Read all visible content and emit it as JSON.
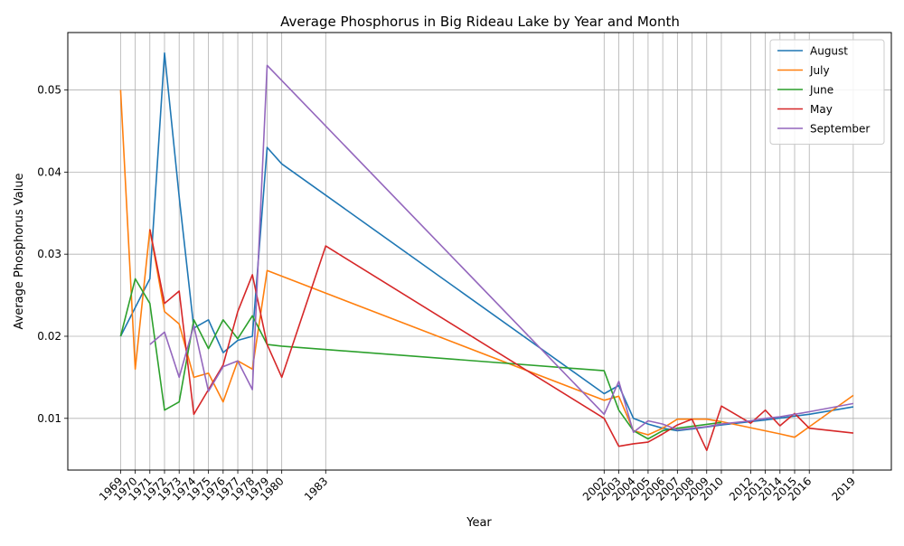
{
  "chart_data": {
    "type": "line",
    "title": "Average Phosphorus in Big Rideau Lake by Year and Month",
    "xlabel": "Year",
    "ylabel": "Average Phosphorus Value",
    "xlim": [
      1965.4,
      2021.6
    ],
    "ylim": [
      0.0037,
      0.057
    ],
    "yticks": [
      0.01,
      0.02,
      0.03,
      0.04,
      0.05
    ],
    "ytick_labels": [
      "0.01",
      "0.02",
      "0.03",
      "0.04",
      "0.05"
    ],
    "xticks": [
      1969,
      1970,
      1971,
      1972,
      1973,
      1974,
      1975,
      1976,
      1977,
      1978,
      1979,
      1980,
      1983,
      2002,
      2003,
      2004,
      2005,
      2006,
      2007,
      2008,
      2009,
      2010,
      2012,
      2013,
      2014,
      2015,
      2016,
      2019
    ],
    "grid": true,
    "legend_position": "upper-right",
    "series": [
      {
        "name": "August",
        "color": "#1f77b4",
        "x": [
          1969,
          1971,
          1972,
          1973,
          1974,
          1975,
          1976,
          1977,
          1978,
          1979,
          1980,
          2002,
          2003,
          2004,
          2005,
          2006,
          2007,
          2008,
          2010,
          2013,
          2016,
          2019
        ],
        "y": [
          0.02,
          0.027,
          0.0545,
          0.037,
          0.021,
          0.022,
          0.018,
          0.0195,
          0.02,
          0.043,
          0.041,
          0.013,
          0.014,
          0.01,
          0.0093,
          0.0088,
          0.0085,
          0.0087,
          0.0092,
          0.0098,
          0.0105,
          0.0114
        ]
      },
      {
        "name": "July",
        "color": "#ff7f0e",
        "x": [
          1969,
          1970,
          1971,
          1972,
          1973,
          1974,
          1975,
          1976,
          1977,
          1978,
          1979,
          2002,
          2003,
          2004,
          2005,
          2006,
          2007,
          2008,
          2009,
          2010,
          2014,
          2015,
          2019
        ],
        "y": [
          0.05,
          0.016,
          0.033,
          0.023,
          0.0215,
          0.015,
          0.0155,
          0.012,
          0.017,
          0.016,
          0.028,
          0.0122,
          0.0127,
          0.0085,
          0.008,
          0.0088,
          0.0099,
          0.0099,
          0.0099,
          0.0096,
          0.0081,
          0.0077,
          0.0128
        ]
      },
      {
        "name": "June",
        "color": "#2ca02c",
        "x": [
          1969,
          1970,
          1971,
          1972,
          1973,
          1974,
          1975,
          1976,
          1977,
          1978,
          1979,
          1980,
          2002,
          2003,
          2004,
          2005,
          2006,
          2007,
          2010
        ],
        "y": [
          0.02,
          0.027,
          0.024,
          0.011,
          0.012,
          0.022,
          0.0185,
          0.022,
          0.0197,
          0.0225,
          0.019,
          0.0188,
          0.0158,
          0.011,
          0.0085,
          0.0075,
          0.0085,
          0.0088,
          0.0095
        ]
      },
      {
        "name": "May",
        "color": "#d62728",
        "x": [
          1971,
          1972,
          1973,
          1974,
          1975,
          1976,
          1977,
          1978,
          1979,
          1980,
          1983,
          2002,
          2003,
          2004,
          2005,
          2006,
          2007,
          2008,
          2009,
          2010,
          2012,
          2013,
          2014,
          2015,
          2016,
          2019
        ],
        "y": [
          0.033,
          0.024,
          0.0255,
          0.0105,
          0.0135,
          0.0165,
          0.023,
          0.0275,
          0.019,
          0.015,
          0.031,
          0.01,
          0.0066,
          0.0069,
          0.0071,
          0.0081,
          0.0092,
          0.0099,
          0.0061,
          0.0115,
          0.0094,
          0.011,
          0.0091,
          0.0106,
          0.0088,
          0.0082
        ]
      },
      {
        "name": "September",
        "color": "#9467bd",
        "x": [
          1971,
          1972,
          1973,
          1974,
          1975,
          1976,
          1977,
          1978,
          1979,
          2002,
          2003,
          2004,
          2005,
          2006,
          2007,
          2008,
          2009,
          2010,
          2012,
          2013,
          2014,
          2015,
          2016,
          2019
        ],
        "y": [
          0.019,
          0.0205,
          0.015,
          0.0213,
          0.0133,
          0.0163,
          0.017,
          0.0135,
          0.053,
          0.0105,
          0.0145,
          0.0083,
          0.0097,
          0.0093,
          0.0086,
          0.0088,
          0.009,
          0.0093,
          0.0097,
          0.01,
          0.0102,
          0.0105,
          0.0108,
          0.0118
        ]
      }
    ]
  }
}
